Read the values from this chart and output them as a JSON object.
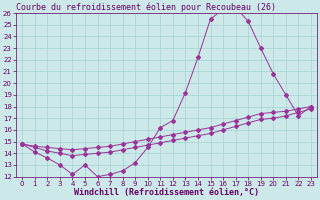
{
  "title": "Courbe du refroidissement éolien pour Recoubeau (26)",
  "xlabel": "Windchill (Refroidissement éolien,°C)",
  "bg_color": "#cce8e8",
  "grid_color": "#99cccc",
  "line_color": "#993399",
  "xlim": [
    -0.5,
    23.5
  ],
  "ylim": [
    12,
    26
  ],
  "xticks": [
    0,
    1,
    2,
    3,
    4,
    5,
    6,
    7,
    8,
    9,
    10,
    11,
    12,
    13,
    14,
    15,
    16,
    17,
    18,
    19,
    20,
    21,
    22,
    23
  ],
  "yticks": [
    12,
    13,
    14,
    15,
    16,
    17,
    18,
    19,
    20,
    21,
    22,
    23,
    24,
    25,
    26
  ],
  "line1_x": [
    0,
    1,
    2,
    3,
    4,
    5,
    6,
    7,
    8,
    9,
    10,
    11,
    12,
    13,
    14,
    15,
    16,
    17,
    18,
    19,
    20,
    21,
    22,
    23
  ],
  "line1_y": [
    14.8,
    14.1,
    13.6,
    13.0,
    12.2,
    13.0,
    12.0,
    12.2,
    12.5,
    13.2,
    14.5,
    16.2,
    16.8,
    19.2,
    22.2,
    25.5,
    26.3,
    26.5,
    25.3,
    23.0,
    20.8,
    19.0,
    17.2,
    18.0
  ],
  "line2_x": [
    0,
    1,
    2,
    3,
    4,
    5,
    6,
    7,
    8,
    9,
    10,
    11,
    12,
    13,
    14,
    15,
    16,
    17,
    18,
    19,
    20,
    21,
    22,
    23
  ],
  "line2_y": [
    14.8,
    14.6,
    14.5,
    14.4,
    14.3,
    14.4,
    14.5,
    14.6,
    14.8,
    15.0,
    15.2,
    15.4,
    15.6,
    15.8,
    16.0,
    16.2,
    16.5,
    16.8,
    17.1,
    17.4,
    17.5,
    17.6,
    17.8,
    18.0
  ],
  "line3_x": [
    0,
    1,
    2,
    3,
    4,
    5,
    6,
    7,
    8,
    9,
    10,
    11,
    12,
    13,
    14,
    15,
    16,
    17,
    18,
    19,
    20,
    21,
    22,
    23
  ],
  "line3_y": [
    14.8,
    14.5,
    14.2,
    14.0,
    13.8,
    13.9,
    14.0,
    14.1,
    14.3,
    14.5,
    14.7,
    14.9,
    15.1,
    15.3,
    15.5,
    15.7,
    16.0,
    16.3,
    16.6,
    16.9,
    17.0,
    17.2,
    17.5,
    17.8
  ],
  "title_color": "#660066",
  "xlabel_color": "#660066",
  "tick_color": "#660066",
  "fontsize_title": 6,
  "fontsize_label": 6,
  "fontsize_tick": 5,
  "marker": "D",
  "marker_size": 2,
  "linewidth": 0.7
}
